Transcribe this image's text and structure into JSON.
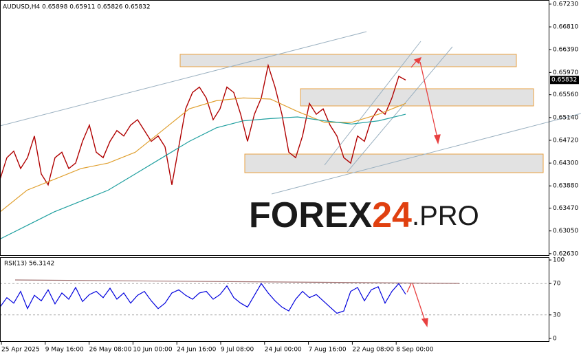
{
  "chart_data": [
    {
      "type": "line",
      "title": "AUDUSD,H4 0.65898 0.65911 0.65826 0.65832",
      "x_labels": [
        "25 Apr 2025",
        "9 May 16:00",
        "26 May 08:00",
        "10 Jun 00:00",
        "24 Jun 16:00",
        "9 Jul 08:00",
        "24 Jul 00:00",
        "7 Aug 16:00",
        "22 Aug 08:00",
        "8 Sep 00:00"
      ],
      "series": [
        {
          "color": "#b00000",
          "values": [
            0.64,
            0.644,
            0.6452,
            0.642,
            0.644,
            0.648,
            0.641,
            0.639,
            0.644,
            0.645,
            0.642,
            0.643,
            0.647,
            0.65,
            0.645,
            0.644,
            0.647,
            0.649,
            0.648,
            0.65,
            0.651,
            0.649,
            0.647,
            0.648,
            0.646,
            0.639,
            0.646,
            0.653,
            0.656,
            0.657,
            0.655,
            0.651,
            0.653,
            0.657,
            0.656,
            0.652,
            0.647,
            0.652,
            0.655,
            0.661,
            0.657,
            0.652,
            0.645,
            0.644,
            0.648,
            0.654,
            0.652,
            0.653,
            0.65,
            0.648,
            0.644,
            0.643,
            0.648,
            0.647,
            0.651,
            0.653,
            0.652,
            0.655,
            0.659,
            0.6583
          ]
        },
        {
          "color": "#e0a030",
          "values": [
            0.634,
            0.638,
            0.64,
            0.642,
            0.643,
            0.645,
            0.649,
            0.653,
            0.6545,
            0.655,
            0.6548,
            0.6525,
            0.6505,
            0.6505,
            0.652,
            0.654
          ]
        },
        {
          "color": "#20a0a0",
          "values": [
            0.629,
            0.6315,
            0.634,
            0.636,
            0.638,
            0.641,
            0.644,
            0.647,
            0.6495,
            0.6508,
            0.6512,
            0.6515,
            0.6508,
            0.6502,
            0.6508,
            0.652
          ]
        }
      ],
      "ylim": [
        0.6259,
        0.6728
      ],
      "yticks": [
        {
          "value": 0.6723,
          "label": "0.67230"
        },
        {
          "value": 0.6681,
          "label": "0.66810"
        },
        {
          "value": 0.6639,
          "label": "0.66390"
        },
        {
          "value": 0.6597,
          "label": "0.65970"
        },
        {
          "value": 0.6556,
          "label": "0.65560"
        },
        {
          "value": 0.6514,
          "label": "0.65140"
        },
        {
          "value": 0.6472,
          "label": "0.64720"
        },
        {
          "value": 0.643,
          "label": "0.64300"
        },
        {
          "value": 0.6388,
          "label": "0.63880"
        },
        {
          "value": 0.6347,
          "label": "0.63470"
        },
        {
          "value": 0.6305,
          "label": "0.63050"
        },
        {
          "value": 0.6263,
          "label": "0.62630"
        }
      ],
      "last_price": {
        "value": 0.65832,
        "label": "0.65832"
      },
      "watermark": {
        "brand": "FOREX",
        "number": "24",
        "suffix": ".PRO"
      }
    },
    {
      "type": "line",
      "title": "RSI(13) 56.3142",
      "series": [
        {
          "color": "#0000dd",
          "values": [
            40,
            52,
            45,
            60,
            38,
            55,
            48,
            62,
            44,
            58,
            50,
            65,
            47,
            56,
            60,
            52,
            64,
            50,
            58,
            45,
            55,
            60,
            48,
            38,
            45,
            58,
            62,
            55,
            50,
            58,
            60,
            50,
            56,
            67,
            52,
            45,
            40,
            55,
            70,
            58,
            48,
            40,
            35,
            50,
            60,
            52,
            56,
            48,
            40,
            32,
            35,
            60,
            65,
            48,
            62,
            66,
            45,
            60,
            70,
            56.3142
          ]
        }
      ],
      "ylim": [
        0,
        100
      ],
      "yticks": [
        100,
        70,
        30,
        0
      ],
      "levels": [
        70,
        30
      ]
    }
  ]
}
